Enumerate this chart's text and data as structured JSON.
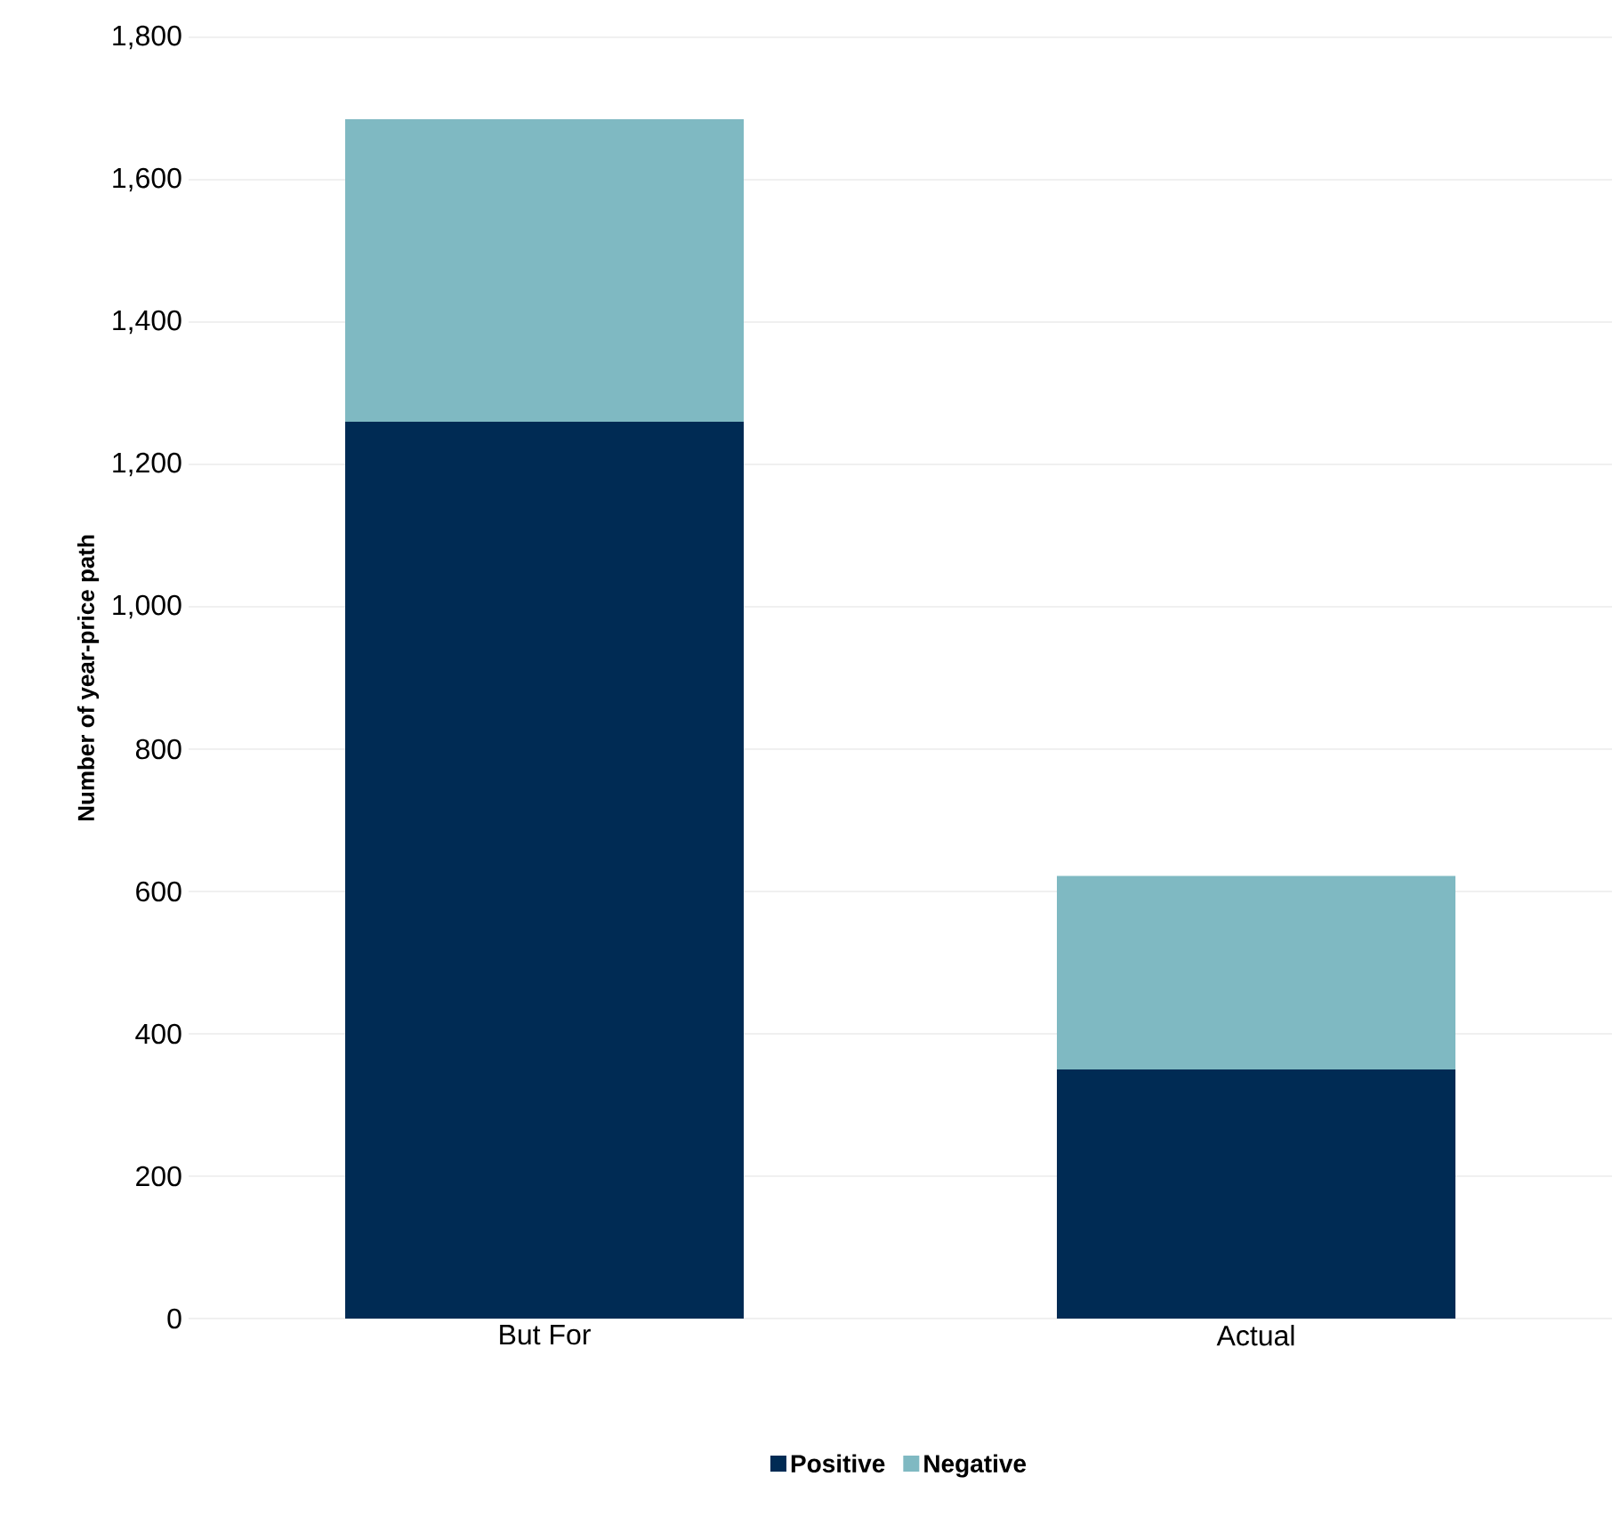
{
  "chart_data": {
    "type": "bar",
    "ylabel": "Number of year-price path",
    "categories": [
      "But For",
      "Actual"
    ],
    "stacked": true,
    "series": [
      {
        "name": "Positive",
        "color": "#002b54",
        "values": [
          1260,
          350
        ]
      },
      {
        "name": "Negative",
        "color": "#7fb9c2",
        "values": [
          425,
          272
        ]
      }
    ],
    "ylim": [
      0,
      1800
    ],
    "yticks": [
      {
        "value": 0,
        "label": "0"
      },
      {
        "value": 200,
        "label": "200"
      },
      {
        "value": 400,
        "label": "400"
      },
      {
        "value": 600,
        "label": "600"
      },
      {
        "value": 800,
        "label": "800"
      },
      {
        "value": 1000,
        "label": "1,000"
      },
      {
        "value": 1200,
        "label": "1,200"
      },
      {
        "value": 1400,
        "label": "1,400"
      },
      {
        "value": 1600,
        "label": "1,600"
      },
      {
        "value": 1800,
        "label": "1,800"
      }
    ],
    "grid": "y",
    "legend": "bottom"
  }
}
